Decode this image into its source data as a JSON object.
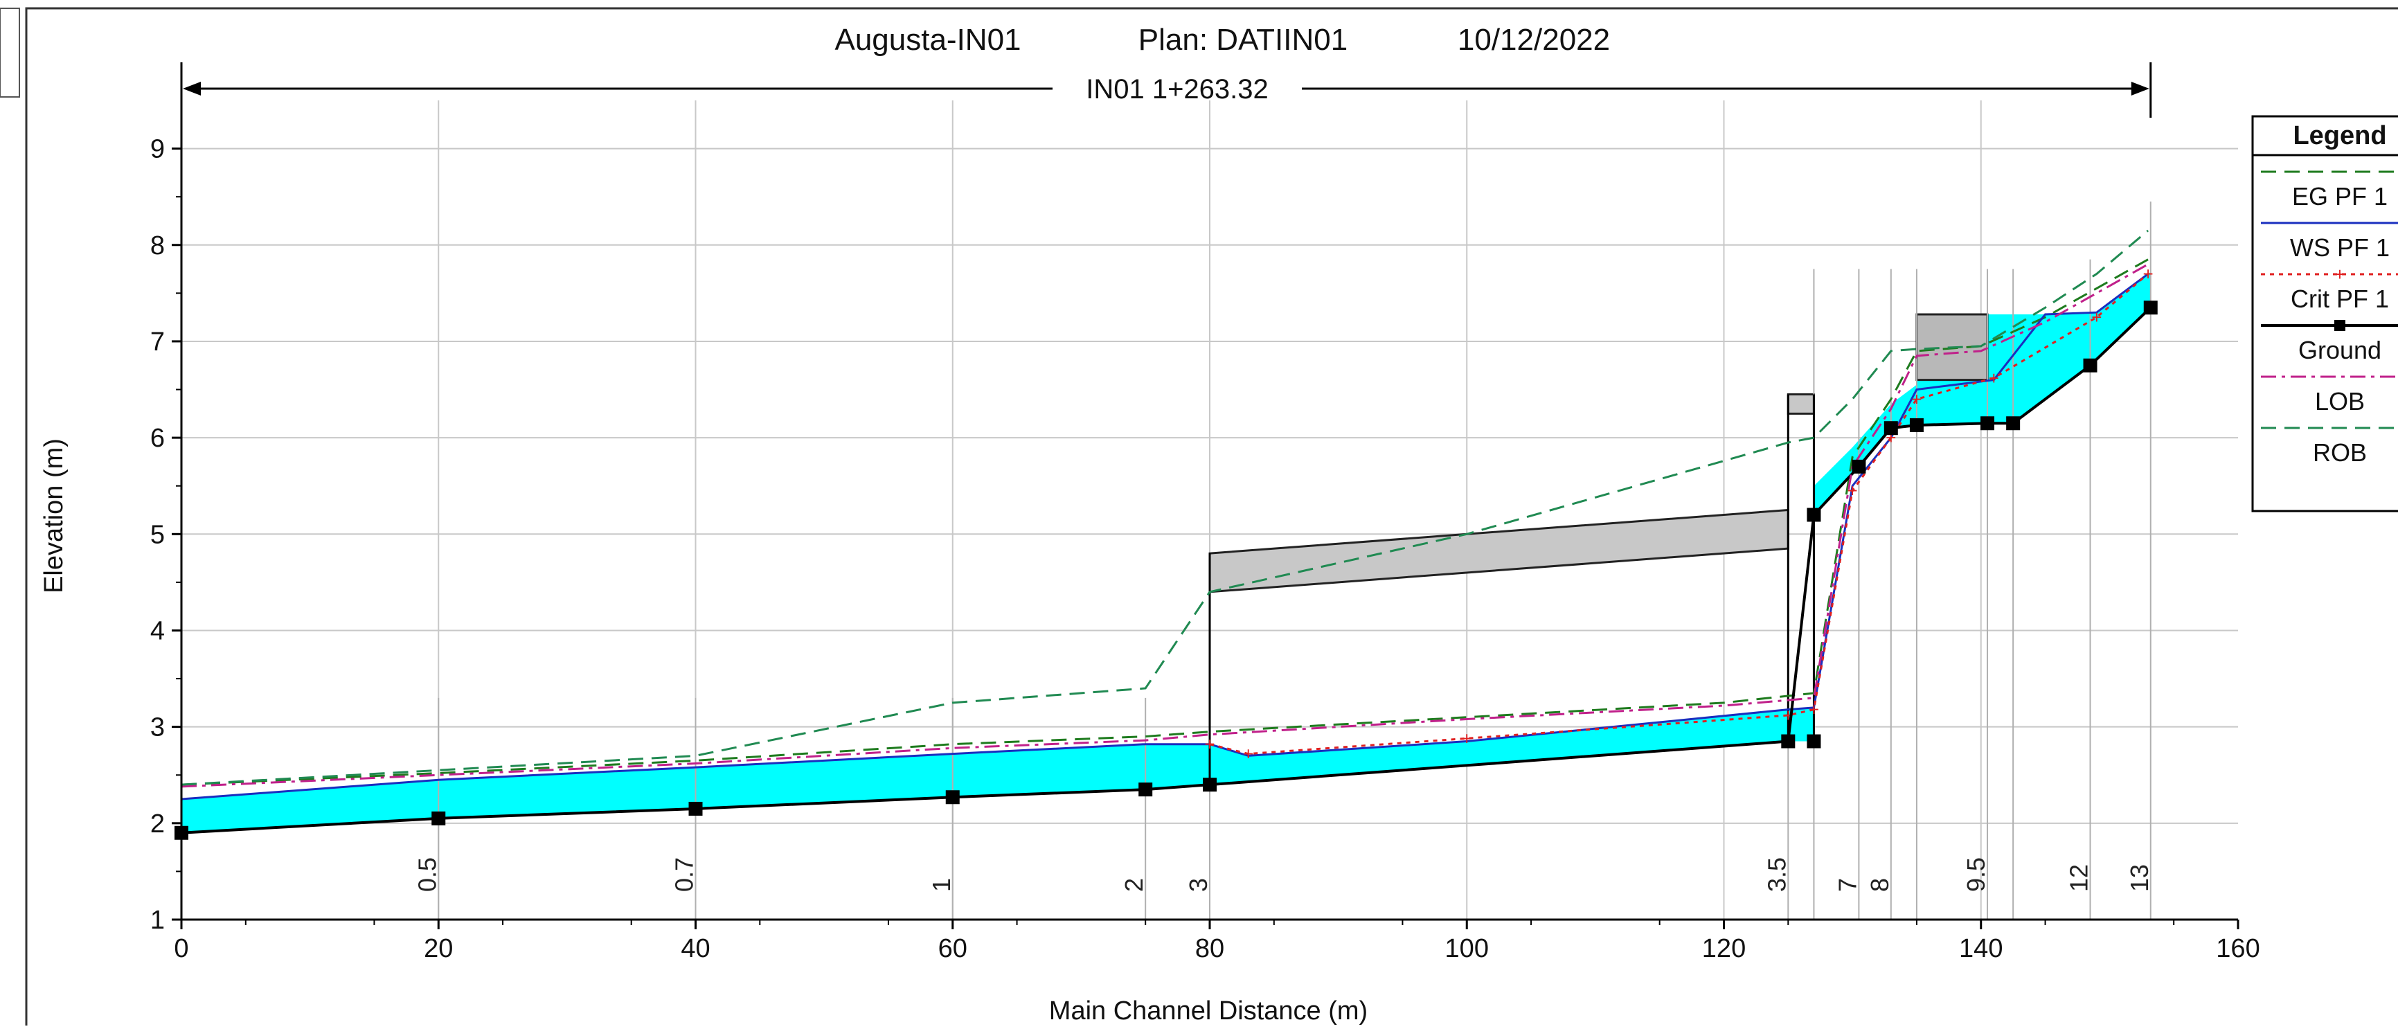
{
  "chart_data": {
    "type": "line",
    "title_parts": [
      "Augusta-IN01",
      "Plan:  DATIIN01",
      "10/12/2022"
    ],
    "span_label": "IN01 1+263.32",
    "xlabel": "Main Channel Distance (m)",
    "ylabel": "Elevation (m)",
    "xlim": [
      0,
      160
    ],
    "ylim": [
      1,
      9.5
    ],
    "x_ticks": [
      0,
      20,
      40,
      60,
      80,
      100,
      120,
      140,
      160
    ],
    "y_ticks": [
      1,
      2,
      3,
      4,
      5,
      6,
      7,
      8,
      9
    ],
    "grid": true,
    "legend_position": "right",
    "legend_title": "Legend",
    "series": [
      {
        "name": "EG PF 1",
        "color": "#1e7b1e",
        "dash": "dash",
        "x": [
          0,
          20,
          40,
          60,
          75,
          80,
          100,
          120,
          127,
          130,
          133,
          135,
          140,
          145,
          149,
          153
        ],
        "y": [
          2.4,
          2.52,
          2.65,
          2.82,
          2.9,
          2.95,
          3.1,
          3.25,
          3.35,
          5.8,
          6.4,
          6.9,
          6.95,
          7.25,
          7.55,
          7.85
        ]
      },
      {
        "name": "WS PF 1",
        "color": "#1a2fbf",
        "dash": "solid",
        "x": [
          0,
          20,
          40,
          60,
          75,
          80,
          83,
          100,
          125,
          127,
          130,
          133,
          135,
          141,
          145,
          149,
          153
        ],
        "y": [
          2.25,
          2.45,
          2.58,
          2.72,
          2.82,
          2.82,
          2.7,
          2.85,
          3.18,
          3.2,
          5.5,
          6.0,
          6.5,
          6.6,
          7.28,
          7.3,
          7.7
        ]
      },
      {
        "name": "Crit PF 1",
        "color": "#e02020",
        "dash": "dot",
        "x": [
          80,
          83,
          100,
          125,
          127,
          130,
          133,
          135,
          141,
          149,
          153
        ],
        "y": [
          2.82,
          2.72,
          2.88,
          3.12,
          3.18,
          5.45,
          6.0,
          6.4,
          6.62,
          7.25,
          7.7
        ]
      },
      {
        "name": "Ground",
        "color": "#000000",
        "dash": "solid",
        "x": [
          0,
          20,
          40,
          60,
          75,
          80,
          100,
          125,
          127,
          130.5,
          133,
          135,
          140.5,
          142.5,
          148.5,
          153.2
        ],
        "y": [
          1.9,
          2.05,
          2.15,
          2.27,
          2.35,
          2.4,
          2.6,
          2.85,
          5.2,
          5.7,
          6.1,
          6.13,
          6.15,
          6.15,
          6.75,
          7.35
        ]
      },
      {
        "name": "LOB",
        "color": "#c0208a",
        "dash": "dashdot",
        "x": [
          0,
          20,
          40,
          60,
          75,
          80,
          100,
          120,
          127,
          130,
          133,
          135,
          140,
          145,
          149,
          153
        ],
        "y": [
          2.38,
          2.5,
          2.62,
          2.78,
          2.86,
          2.92,
          3.08,
          3.22,
          3.3,
          5.7,
          6.3,
          6.85,
          6.9,
          7.2,
          7.5,
          7.8
        ]
      },
      {
        "name": "ROB",
        "color": "#208a52",
        "dash": "dash",
        "x": [
          0,
          20,
          40,
          60,
          75,
          80,
          100,
          125,
          127,
          130,
          133,
          135,
          140,
          145,
          149,
          153
        ],
        "y": [
          2.4,
          2.55,
          2.7,
          3.25,
          3.4,
          4.4,
          5.0,
          5.95,
          6.0,
          6.4,
          6.9,
          6.92,
          6.95,
          7.35,
          7.7,
          8.15
        ]
      }
    ],
    "ground_markers": [
      {
        "x": 0,
        "y": 1.9
      },
      {
        "x": 20,
        "y": 2.05
      },
      {
        "x": 40,
        "y": 2.15
      },
      {
        "x": 60,
        "y": 2.27
      },
      {
        "x": 75,
        "y": 2.35
      },
      {
        "x": 80,
        "y": 2.4
      },
      {
        "x": 125,
        "y": 2.85
      },
      {
        "x": 127,
        "y": 2.85
      },
      {
        "x": 127,
        "y": 5.2
      },
      {
        "x": 130.5,
        "y": 5.7
      },
      {
        "x": 133,
        "y": 6.1
      },
      {
        "x": 135,
        "y": 6.13
      },
      {
        "x": 140.5,
        "y": 6.15
      },
      {
        "x": 142.5,
        "y": 6.15
      },
      {
        "x": 148.5,
        "y": 6.75
      },
      {
        "x": 153.2,
        "y": 7.35
      }
    ],
    "water_fill": {
      "color": "#00ffff",
      "top": [
        [
          0,
          2.25
        ],
        [
          20,
          2.45
        ],
        [
          40,
          2.58
        ],
        [
          60,
          2.72
        ],
        [
          75,
          2.82
        ],
        [
          80,
          2.82
        ],
        [
          83,
          2.7
        ],
        [
          100,
          2.85
        ],
        [
          125,
          3.18
        ],
        [
          127,
          3.2
        ]
      ],
      "bottom": [
        [
          0,
          1.9
        ],
        [
          20,
          2.05
        ],
        [
          40,
          2.15
        ],
        [
          60,
          2.27
        ],
        [
          75,
          2.35
        ],
        [
          80,
          2.4
        ],
        [
          100,
          2.6
        ],
        [
          125,
          2.85
        ],
        [
          127,
          2.85
        ]
      ],
      "top2": [
        [
          127,
          5.5
        ],
        [
          130,
          5.9
        ],
        [
          133,
          6.35
        ],
        [
          135,
          6.55
        ],
        [
          135,
          7.28
        ],
        [
          141,
          7.28
        ],
        [
          145,
          7.28
        ],
        [
          149,
          7.3
        ],
        [
          153.2,
          7.72
        ]
      ],
      "bottom2": [
        [
          127,
          5.2
        ],
        [
          130.5,
          5.7
        ],
        [
          133,
          6.1
        ],
        [
          135,
          6.13
        ],
        [
          140.5,
          6.15
        ],
        [
          142.5,
          6.15
        ],
        [
          148.5,
          6.75
        ],
        [
          153.2,
          7.35
        ]
      ]
    },
    "structures": [
      {
        "name": "deck",
        "color": "#c8c8c8",
        "points": [
          [
            80,
            4.4
          ],
          [
            80,
            4.8
          ],
          [
            125,
            5.25
          ],
          [
            125,
            4.85
          ]
        ]
      },
      {
        "name": "deck2",
        "color": "#c8c8c8",
        "points": [
          [
            125,
            6.25
          ],
          [
            125,
            6.45
          ],
          [
            127,
            6.45
          ],
          [
            127,
            6.25
          ]
        ]
      },
      {
        "name": "culvert",
        "color": "#b8b8b8",
        "points": [
          [
            135,
            6.6
          ],
          [
            135,
            7.28
          ],
          [
            140.5,
            7.28
          ],
          [
            140.5,
            6.6
          ]
        ]
      }
    ],
    "structure_lines": [
      {
        "x": [
          80,
          80
        ],
        "y": [
          2.4,
          4.8
        ]
      },
      {
        "x": [
          125,
          125
        ],
        "y": [
          2.85,
          6.45
        ]
      },
      {
        "x": [
          127,
          127
        ],
        "y": [
          2.85,
          6.45
        ]
      }
    ],
    "station_labels": [
      {
        "x": 20,
        "label": "0.5"
      },
      {
        "x": 40,
        "label": "0.7"
      },
      {
        "x": 60,
        "label": "1"
      },
      {
        "x": 75,
        "label": "2"
      },
      {
        "x": 80,
        "label": "3"
      },
      {
        "x": 125,
        "label": "3.5"
      },
      {
        "x": 130.5,
        "label": "7"
      },
      {
        "x": 133,
        "label": "8"
      },
      {
        "x": 140.5,
        "label": "9.5"
      },
      {
        "x": 148.5,
        "label": "12"
      },
      {
        "x": 153.2,
        "label": "13"
      }
    ],
    "station_lines": [
      20,
      40,
      60,
      75,
      80,
      125,
      127,
      130.5,
      133,
      135,
      140.5,
      142.5,
      148.5,
      153.2
    ],
    "span_range": [
      0,
      153.2
    ]
  }
}
